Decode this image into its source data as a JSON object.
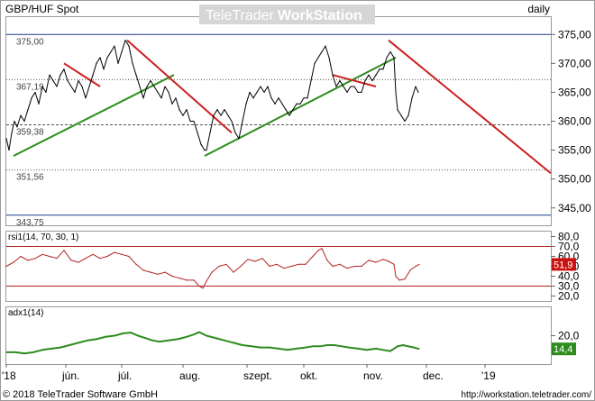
{
  "window": {
    "symbol": "GBP/HUF Spot",
    "watermark": {
      "brand": "TeleTrader",
      "product": "WorkStation"
    },
    "interval": "daily",
    "footer_left": "© 2018 TeleTrader Software GmbH",
    "footer_right": "http://workstation.teletrader.com/"
  },
  "colors": {
    "price": "#000000",
    "trend_green": "#2e8b1e",
    "trend_red": "#cc1f1f",
    "level_line": "#1f3a8a",
    "rsi": "#b22222",
    "adx": "#2e8b1e",
    "rsi_badge": "#cc1111",
    "adx_badge": "#2e8b1e"
  },
  "chart_data": [
    {
      "type": "line",
      "panel": "price",
      "ylim": [
        342,
        378
      ],
      "yticks": [
        "345,00",
        "350,00",
        "355,00",
        "360,00",
        "365,00",
        "370,00",
        "375,00"
      ],
      "x_labels": [
        "'18",
        "jún.",
        "júl.",
        "aug.",
        "szept.",
        "okt.",
        "nov.",
        "dec.",
        "'19"
      ],
      "levels": [
        {
          "label": "375,00",
          "value": 375.0,
          "style": "solid"
        },
        {
          "label": "367,19",
          "value": 367.19,
          "style": "dotted"
        },
        {
          "label": "359,38",
          "value": 359.38,
          "style": "dashed"
        },
        {
          "label": "351,56",
          "value": 351.56,
          "style": "dotted"
        },
        {
          "label": "343,75",
          "value": 343.75,
          "style": "solid"
        }
      ],
      "series": [
        {
          "values": [
            [
              0,
              357
            ],
            [
              3,
              355
            ],
            [
              6,
              358
            ],
            [
              9,
              360
            ],
            [
              12,
              359
            ],
            [
              16,
              361
            ],
            [
              20,
              360
            ],
            [
              24,
              362
            ],
            [
              28,
              364
            ],
            [
              32,
              365
            ],
            [
              36,
              363
            ],
            [
              40,
              366
            ],
            [
              44,
              365
            ],
            [
              48,
              368
            ],
            [
              52,
              367
            ],
            [
              56,
              366
            ],
            [
              60,
              368
            ],
            [
              64,
              369
            ],
            [
              68,
              367
            ],
            [
              72,
              366
            ],
            [
              76,
              365
            ],
            [
              80,
              367
            ],
            [
              84,
              366
            ],
            [
              88,
              364
            ],
            [
              92,
              366
            ],
            [
              96,
              368
            ],
            [
              100,
              370
            ],
            [
              104,
              371
            ],
            [
              108,
              369
            ],
            [
              112,
              371
            ],
            [
              116,
              372
            ],
            [
              120,
              373
            ],
            [
              124,
              370
            ],
            [
              128,
              372
            ],
            [
              132,
              374
            ],
            [
              136,
              373
            ],
            [
              140,
              370
            ],
            [
              144,
              368
            ],
            [
              148,
              366
            ],
            [
              152,
              364
            ],
            [
              156,
              366
            ],
            [
              160,
              367
            ],
            [
              164,
              366
            ],
            [
              168,
              365
            ],
            [
              172,
              364
            ],
            [
              176,
              366
            ],
            [
              180,
              365
            ],
            [
              184,
              363
            ],
            [
              188,
              364
            ],
            [
              192,
              362
            ],
            [
              196,
              361
            ],
            [
              200,
              362
            ],
            [
              204,
              360
            ],
            [
              208,
              360
            ],
            [
              212,
              358
            ],
            [
              216,
              356
            ],
            [
              220,
              355
            ],
            [
              222,
              355
            ],
            [
              226,
              358
            ],
            [
              230,
              361
            ],
            [
              234,
              362
            ],
            [
              238,
              361
            ],
            [
              242,
              362
            ],
            [
              246,
              361
            ],
            [
              250,
              360
            ],
            [
              254,
              358
            ],
            [
              258,
              357
            ],
            [
              262,
              360
            ],
            [
              266,
              363
            ],
            [
              270,
              365
            ],
            [
              274,
              364
            ],
            [
              278,
              365
            ],
            [
              282,
              366
            ],
            [
              286,
              365
            ],
            [
              290,
              366
            ],
            [
              294,
              364
            ],
            [
              298,
              363
            ],
            [
              302,
              364
            ],
            [
              306,
              363
            ],
            [
              310,
              362
            ],
            [
              314,
              361
            ],
            [
              318,
              362
            ],
            [
              322,
              363
            ],
            [
              326,
              363
            ],
            [
              330,
              364
            ],
            [
              334,
              364
            ],
            [
              338,
              367
            ],
            [
              342,
              370
            ],
            [
              346,
              371
            ],
            [
              350,
              372
            ],
            [
              354,
              373
            ],
            [
              358,
              371
            ],
            [
              362,
              368
            ],
            [
              366,
              366
            ],
            [
              370,
              367
            ],
            [
              374,
              366
            ],
            [
              378,
              365
            ],
            [
              382,
              366
            ],
            [
              386,
              366
            ],
            [
              390,
              365
            ],
            [
              394,
              365
            ],
            [
              398,
              367
            ],
            [
              402,
              368
            ],
            [
              406,
              367
            ],
            [
              410,
              368
            ],
            [
              414,
              369
            ],
            [
              418,
              369
            ],
            [
              422,
              371
            ],
            [
              426,
              372
            ],
            [
              430,
              371
            ],
            [
              432,
              365
            ],
            [
              434,
              362
            ],
            [
              438,
              361
            ],
            [
              442,
              360
            ],
            [
              446,
              361
            ],
            [
              450,
              364
            ],
            [
              454,
              366
            ],
            [
              457,
              365
            ]
          ]
        }
      ],
      "trendlines": [
        {
          "color": "trend_green",
          "points": [
            [
              8,
              354
            ],
            [
              186,
              368
            ]
          ]
        },
        {
          "color": "trend_green",
          "points": [
            [
              220,
              354
            ],
            [
              432,
              371
            ]
          ]
        },
        {
          "color": "trend_red",
          "points": [
            [
              134,
              374
            ],
            [
              250,
              358
            ]
          ]
        },
        {
          "color": "trend_red",
          "points": [
            [
              362,
              368
            ],
            [
              410,
              366
            ]
          ]
        },
        {
          "color": "trend_red",
          "points": [
            [
              64,
              370
            ],
            [
              104,
              366
            ]
          ]
        },
        {
          "color": "trend_red",
          "points": [
            [
              424,
              374
            ],
            [
              604,
              351
            ]
          ]
        }
      ]
    },
    {
      "type": "line",
      "panel": "rsi",
      "title": "rsi1(14, 70, 30, 1)",
      "ylim": [
        15,
        85
      ],
      "yticks": [
        "20,0",
        "30,0",
        "40,0",
        "50,0",
        "60,0",
        "70,0",
        "80,0"
      ],
      "levels": [
        70,
        30
      ],
      "last_value": "51,9",
      "series": [
        {
          "values": [
            [
              0,
              50
            ],
            [
              8,
              54
            ],
            [
              16,
              60
            ],
            [
              24,
              56
            ],
            [
              32,
              58
            ],
            [
              40,
              62
            ],
            [
              48,
              60
            ],
            [
              56,
              58
            ],
            [
              64,
              66
            ],
            [
              72,
              56
            ],
            [
              80,
              54
            ],
            [
              88,
              58
            ],
            [
              96,
              62
            ],
            [
              104,
              58
            ],
            [
              112,
              60
            ],
            [
              120,
              64
            ],
            [
              128,
              62
            ],
            [
              136,
              60
            ],
            [
              144,
              52
            ],
            [
              152,
              46
            ],
            [
              160,
              44
            ],
            [
              168,
              42
            ],
            [
              176,
              44
            ],
            [
              184,
              40
            ],
            [
              192,
              38
            ],
            [
              200,
              36
            ],
            [
              208,
              36
            ],
            [
              214,
              30
            ],
            [
              218,
              28
            ],
            [
              222,
              35
            ],
            [
              228,
              44
            ],
            [
              236,
              50
            ],
            [
              244,
              52
            ],
            [
              252,
              44
            ],
            [
              260,
              50
            ],
            [
              268,
              57
            ],
            [
              276,
              55
            ],
            [
              284,
              58
            ],
            [
              292,
              50
            ],
            [
              300,
              52
            ],
            [
              308,
              48
            ],
            [
              316,
              50
            ],
            [
              324,
              52
            ],
            [
              332,
              52
            ],
            [
              340,
              60
            ],
            [
              346,
              66
            ],
            [
              350,
              68
            ],
            [
              356,
              56
            ],
            [
              362,
              50
            ],
            [
              370,
              52
            ],
            [
              378,
              48
            ],
            [
              386,
              50
            ],
            [
              394,
              50
            ],
            [
              402,
              56
            ],
            [
              410,
              54
            ],
            [
              418,
              57
            ],
            [
              424,
              55
            ],
            [
              430,
              52
            ],
            [
              432,
              40
            ],
            [
              436,
              36
            ],
            [
              442,
              37
            ],
            [
              448,
              46
            ],
            [
              454,
              50
            ],
            [
              458,
              51.9
            ]
          ]
        }
      ]
    },
    {
      "type": "line",
      "panel": "adx",
      "title": "adx1(14)",
      "ylim": [
        8,
        32
      ],
      "yticks": [
        "20,0"
      ],
      "last_value": "14,4",
      "series": [
        {
          "values": [
            [
              0,
              13
            ],
            [
              10,
              13
            ],
            [
              20,
              12.5
            ],
            [
              30,
              13
            ],
            [
              40,
              14
            ],
            [
              50,
              14.5
            ],
            [
              60,
              15
            ],
            [
              70,
              16
            ],
            [
              80,
              17
            ],
            [
              90,
              18
            ],
            [
              100,
              18.5
            ],
            [
              110,
              19.5
            ],
            [
              120,
              20
            ],
            [
              130,
              21
            ],
            [
              138,
              21.3
            ],
            [
              146,
              20
            ],
            [
              154,
              19
            ],
            [
              162,
              18
            ],
            [
              170,
              17.5
            ],
            [
              180,
              18
            ],
            [
              190,
              18.5
            ],
            [
              200,
              19.5
            ],
            [
              208,
              20.5
            ],
            [
              214,
              21.5
            ],
            [
              222,
              20
            ],
            [
              232,
              19
            ],
            [
              242,
              18
            ],
            [
              252,
              17
            ],
            [
              262,
              16
            ],
            [
              272,
              15.5
            ],
            [
              282,
              15
            ],
            [
              292,
              15
            ],
            [
              302,
              14.5
            ],
            [
              312,
              14
            ],
            [
              322,
              14.5
            ],
            [
              332,
              15
            ],
            [
              340,
              15.5
            ],
            [
              348,
              15.5
            ],
            [
              356,
              16
            ],
            [
              364,
              16
            ],
            [
              372,
              15.5
            ],
            [
              380,
              15
            ],
            [
              390,
              14.5
            ],
            [
              400,
              14
            ],
            [
              410,
              14.5
            ],
            [
              418,
              14
            ],
            [
              426,
              13.5
            ],
            [
              434,
              15.5
            ],
            [
              440,
              16
            ],
            [
              446,
              15.5
            ],
            [
              452,
              15
            ],
            [
              458,
              14.4
            ]
          ]
        }
      ]
    }
  ]
}
